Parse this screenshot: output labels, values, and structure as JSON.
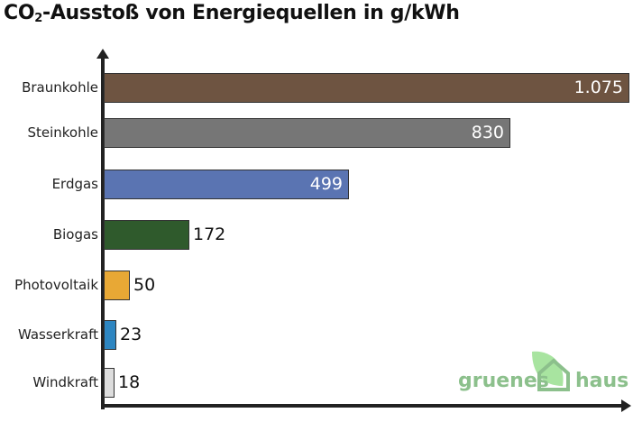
{
  "title": {
    "prefix": "CO",
    "sub": "2",
    "rest": "-Ausstoß von Energiequellen in g/kWh"
  },
  "logo": {
    "left": "gruenes",
    "right": "haus",
    "color": "#8cc08c",
    "leaf_color": "#a8e4a0"
  },
  "chart_data": {
    "type": "bar",
    "orientation": "horizontal",
    "title": "CO2-Ausstoß von Energiequellen in g/kWh",
    "xlabel": "",
    "ylabel": "",
    "categories": [
      "Braunkohle",
      "Steinkohle",
      "Erdgas",
      "Biogas",
      "Photovoltaik",
      "Wasserkraft",
      "Windkraft"
    ],
    "values": [
      1075,
      830,
      499,
      172,
      50,
      23,
      18
    ],
    "value_labels": [
      "1.075",
      "830",
      "499",
      "172",
      "50",
      "23",
      "18"
    ],
    "colors": [
      "#6e5441",
      "#767676",
      "#5a74b2",
      "#2f5a2c",
      "#e8a835",
      "#2e86c1",
      "#dddddd"
    ],
    "xlim": [
      0,
      1075
    ],
    "grid": false,
    "legend": "none"
  }
}
